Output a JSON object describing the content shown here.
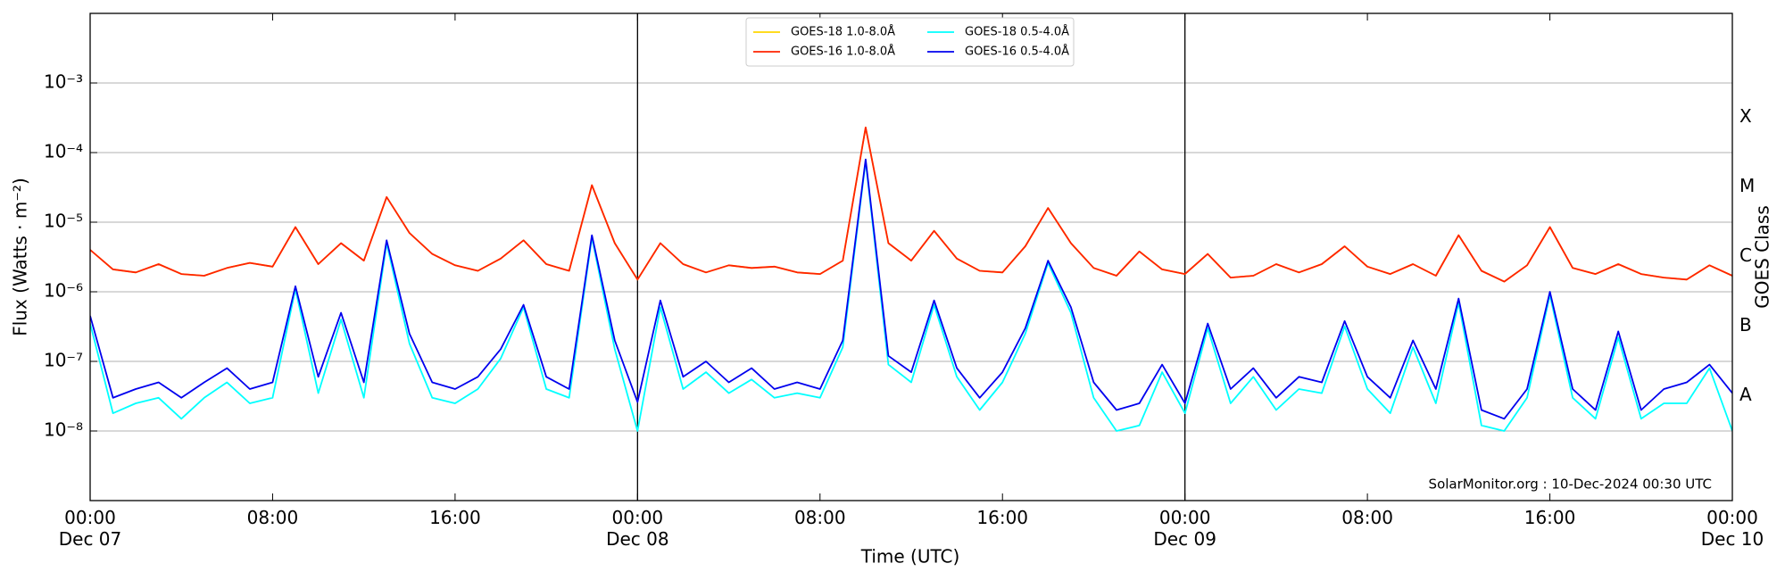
{
  "chart_data": {
    "type": "line",
    "xlabel": "Time (UTC)",
    "ylabel": "Flux (Watts · m⁻²)",
    "y2label": "GOES Class",
    "annotation": "SolarMonitor.org : 10-Dec-2024 00:30 UTC",
    "log_y": true,
    "grid": true,
    "day_lines": true,
    "legend": "top",
    "xlim": [
      "Dec 07 00:00",
      "Dec 10 00:00"
    ],
    "xticks": [
      {
        "value": "Dec 07 00:00",
        "label": "00:00\nDec 07"
      },
      {
        "value": "Dec 07 08:00",
        "label": "08:00"
      },
      {
        "value": "Dec 07 16:00",
        "label": "16:00"
      },
      {
        "value": "Dec 08 00:00",
        "label": "00:00\nDec 08"
      },
      {
        "value": "Dec 08 08:00",
        "label": "08:00"
      },
      {
        "value": "Dec 08 16:00",
        "label": "16:00"
      },
      {
        "value": "Dec 09 00:00",
        "label": "00:00\nDec 09"
      },
      {
        "value": "Dec 09 08:00",
        "label": "08:00"
      },
      {
        "value": "Dec 09 16:00",
        "label": "16:00"
      },
      {
        "value": "Dec 10 00:00",
        "label": "00:00\nDec 10"
      }
    ],
    "ylim": [
      1e-09,
      0.01
    ],
    "yticks": [
      {
        "value": 1e-08,
        "label": "10⁻⁸"
      },
      {
        "value": 1e-07,
        "label": "10⁻⁷"
      },
      {
        "value": 1e-06,
        "label": "10⁻⁶"
      },
      {
        "value": 1e-05,
        "label": "10⁻⁵"
      },
      {
        "value": 0.0001,
        "label": "10⁻⁴"
      },
      {
        "value": 0.001,
        "label": "10⁻³"
      }
    ],
    "y2lim": [
      1e-09,
      0.01
    ],
    "y2ticks": [
      {
        "value": 3.2e-08,
        "label": "A"
      },
      {
        "value": 3.2e-07,
        "label": "B"
      },
      {
        "value": 3.2e-06,
        "label": "C"
      },
      {
        "value": 3.2e-05,
        "label": "M"
      },
      {
        "value": 0.00032,
        "label": "X"
      }
    ],
    "x": [
      "Dec 07 00:00",
      "Dec 07 01:00",
      "Dec 07 02:00",
      "Dec 07 03:00",
      "Dec 07 04:00",
      "Dec 07 05:00",
      "Dec 07 06:00",
      "Dec 07 07:00",
      "Dec 07 08:00",
      "Dec 07 09:00",
      "Dec 07 10:00",
      "Dec 07 11:00",
      "Dec 07 12:00",
      "Dec 07 13:00",
      "Dec 07 14:00",
      "Dec 07 15:00",
      "Dec 07 16:00",
      "Dec 07 17:00",
      "Dec 07 18:00",
      "Dec 07 19:00",
      "Dec 07 20:00",
      "Dec 07 21:00",
      "Dec 07 22:00",
      "Dec 07 23:00",
      "Dec 08 00:00",
      "Dec 08 01:00",
      "Dec 08 02:00",
      "Dec 08 03:00",
      "Dec 08 04:00",
      "Dec 08 05:00",
      "Dec 08 06:00",
      "Dec 08 07:00",
      "Dec 08 08:00",
      "Dec 08 09:00",
      "Dec 08 10:00",
      "Dec 08 11:00",
      "Dec 08 12:00",
      "Dec 08 13:00",
      "Dec 08 14:00",
      "Dec 08 15:00",
      "Dec 08 16:00",
      "Dec 08 17:00",
      "Dec 08 18:00",
      "Dec 08 19:00",
      "Dec 08 20:00",
      "Dec 08 21:00",
      "Dec 08 22:00",
      "Dec 08 23:00",
      "Dec 09 00:00",
      "Dec 09 01:00",
      "Dec 09 02:00",
      "Dec 09 03:00",
      "Dec 09 04:00",
      "Dec 09 05:00",
      "Dec 09 06:00",
      "Dec 09 07:00",
      "Dec 09 08:00",
      "Dec 09 09:00",
      "Dec 09 10:00",
      "Dec 09 11:00",
      "Dec 09 12:00",
      "Dec 09 13:00",
      "Dec 09 14:00",
      "Dec 09 15:00",
      "Dec 09 16:00",
      "Dec 09 17:00",
      "Dec 09 18:00",
      "Dec 09 19:00",
      "Dec 09 20:00",
      "Dec 09 21:00",
      "Dec 09 22:00",
      "Dec 09 23:00",
      "Dec 10 00:00"
    ],
    "series": [
      {
        "name": "GOES-18 1.0-8.0Å",
        "color": "#ffd700",
        "values": [
          4e-06,
          2.1e-06,
          1.9e-06,
          2.5e-06,
          1.8e-06,
          1.7e-06,
          2.2e-06,
          2.6e-06,
          2.3e-06,
          8.5e-06,
          2.5e-06,
          5e-06,
          2.8e-06,
          2.3e-05,
          7e-06,
          3.5e-06,
          2.4e-06,
          2e-06,
          3e-06,
          5.5e-06,
          2.5e-06,
          2e-06,
          3.4e-05,
          5e-06,
          1.5e-06,
          5e-06,
          2.5e-06,
          1.9e-06,
          2.4e-06,
          2.2e-06,
          2.3e-06,
          1.9e-06,
          1.8e-06,
          2.8e-06,
          0.00023,
          5e-06,
          2.8e-06,
          7.5e-06,
          3e-06,
          2e-06,
          1.9e-06,
          4.5e-06,
          1.6e-05,
          5e-06,
          2.2e-06,
          1.7e-06,
          3.8e-06,
          2.1e-06,
          1.8e-06,
          3.5e-06,
          1.6e-06,
          1.7e-06,
          2.5e-06,
          1.9e-06,
          2.5e-06,
          4.5e-06,
          2.3e-06,
          1.8e-06,
          2.5e-06,
          1.7e-06,
          6.5e-06,
          2e-06,
          1.4e-06,
          2.4e-06,
          8.5e-06,
          2.2e-06,
          1.8e-06,
          2.5e-06,
          1.8e-06,
          1.6e-06,
          1.5e-06,
          2.4e-06,
          1.7e-06
        ]
      },
      {
        "name": "GOES-16 1.0-8.0Å",
        "color": "#ff2200",
        "values": [
          4e-06,
          2.1e-06,
          1.9e-06,
          2.5e-06,
          1.8e-06,
          1.7e-06,
          2.2e-06,
          2.6e-06,
          2.3e-06,
          8.5e-06,
          2.5e-06,
          5e-06,
          2.8e-06,
          2.3e-05,
          7e-06,
          3.5e-06,
          2.4e-06,
          2e-06,
          3e-06,
          5.5e-06,
          2.5e-06,
          2e-06,
          3.4e-05,
          5e-06,
          1.5e-06,
          5e-06,
          2.5e-06,
          1.9e-06,
          2.4e-06,
          2.2e-06,
          2.3e-06,
          1.9e-06,
          1.8e-06,
          2.8e-06,
          0.00023,
          5e-06,
          2.8e-06,
          7.5e-06,
          3e-06,
          2e-06,
          1.9e-06,
          4.5e-06,
          1.6e-05,
          5e-06,
          2.2e-06,
          1.7e-06,
          3.8e-06,
          2.1e-06,
          1.8e-06,
          3.5e-06,
          1.6e-06,
          1.7e-06,
          2.5e-06,
          1.9e-06,
          2.5e-06,
          4.5e-06,
          2.3e-06,
          1.8e-06,
          2.5e-06,
          1.7e-06,
          6.5e-06,
          2e-06,
          1.4e-06,
          2.4e-06,
          8.5e-06,
          2.2e-06,
          1.8e-06,
          2.5e-06,
          1.8e-06,
          1.6e-06,
          1.5e-06,
          2.4e-06,
          1.7e-06
        ]
      },
      {
        "name": "GOES-18 0.5-4.0Å",
        "color": "#00ffff",
        "values": [
          3.5e-07,
          1.8e-08,
          2.5e-08,
          3e-08,
          1.5e-08,
          3e-08,
          5e-08,
          2.5e-08,
          3e-08,
          1.1e-06,
          3.5e-08,
          4e-07,
          3e-08,
          5e-06,
          1.8e-07,
          3e-08,
          2.5e-08,
          4e-08,
          1.1e-07,
          6e-07,
          4e-08,
          3e-08,
          6e-06,
          1.5e-07,
          1e-08,
          6e-07,
          4e-08,
          7e-08,
          3.5e-08,
          5.5e-08,
          3e-08,
          3.5e-08,
          3e-08,
          1.6e-07,
          7.5e-05,
          9e-08,
          5e-08,
          6.5e-07,
          6e-08,
          2e-08,
          5e-08,
          2.5e-07,
          2.6e-06,
          5e-07,
          3e-08,
          1e-08,
          1.2e-08,
          7e-08,
          1.8e-08,
          3e-07,
          2.5e-08,
          6e-08,
          2e-08,
          4e-08,
          3.5e-08,
          3.2e-07,
          4e-08,
          1.8e-08,
          1.6e-07,
          2.5e-08,
          7e-07,
          1.2e-08,
          1e-08,
          3e-08,
          9e-07,
          3e-08,
          1.5e-08,
          2.2e-07,
          1.5e-08,
          2.5e-08,
          2.5e-08,
          8e-08,
          1e-08
        ]
      },
      {
        "name": "GOES-16 0.5-4.0Å",
        "color": "#0000ee",
        "values": [
          4.5e-07,
          3e-08,
          4e-08,
          5e-08,
          3e-08,
          5e-08,
          8e-08,
          4e-08,
          5e-08,
          1.2e-06,
          6e-08,
          5e-07,
          5e-08,
          5.5e-06,
          2.5e-07,
          5e-08,
          4e-08,
          6e-08,
          1.5e-07,
          6.5e-07,
          6e-08,
          4e-08,
          6.5e-06,
          2e-07,
          2.6e-08,
          7.5e-07,
          6e-08,
          1e-07,
          5e-08,
          8e-08,
          4e-08,
          5e-08,
          4e-08,
          2e-07,
          8e-05,
          1.2e-07,
          7e-08,
          7.5e-07,
          8e-08,
          3e-08,
          7e-08,
          3e-07,
          2.8e-06,
          6e-07,
          5e-08,
          2e-08,
          2.5e-08,
          9e-08,
          2.5e-08,
          3.5e-07,
          4e-08,
          8e-08,
          3e-08,
          6e-08,
          5e-08,
          3.8e-07,
          6e-08,
          3e-08,
          2e-07,
          4e-08,
          8e-07,
          2e-08,
          1.5e-08,
          4e-08,
          1e-06,
          4e-08,
          2e-08,
          2.7e-07,
          2e-08,
          4e-08,
          5e-08,
          9e-08,
          3.5e-08
        ]
      }
    ]
  }
}
